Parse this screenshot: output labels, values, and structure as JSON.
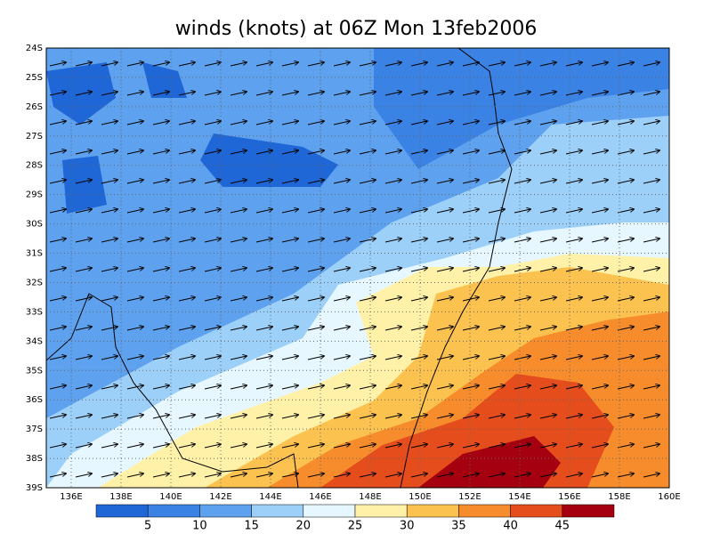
{
  "title": "winds (knots) at 06Z Mon 13feb2006",
  "lat_labels": [
    "24S",
    "25S",
    "26S",
    "27S",
    "28S",
    "29S",
    "30S",
    "31S",
    "32S",
    "33S",
    "34S",
    "35S",
    "36S",
    "37S",
    "38S",
    "39S"
  ],
  "lon_labels": [
    "136E",
    "138E",
    "140E",
    "142E",
    "144E",
    "146E",
    "148E",
    "150E",
    "152E",
    "154E",
    "156E",
    "158E",
    "160E"
  ],
  "colorbar": {
    "colors": [
      "#1f66d6",
      "#3a82e4",
      "#5ea2ef",
      "#9dd0f8",
      "#e6f7ff",
      "#fff1a8",
      "#fbc24f",
      "#f68c2c",
      "#e54d1d",
      "#a4000f"
    ],
    "labels": [
      5,
      10,
      15,
      20,
      25,
      30,
      35,
      40,
      45
    ]
  }
}
